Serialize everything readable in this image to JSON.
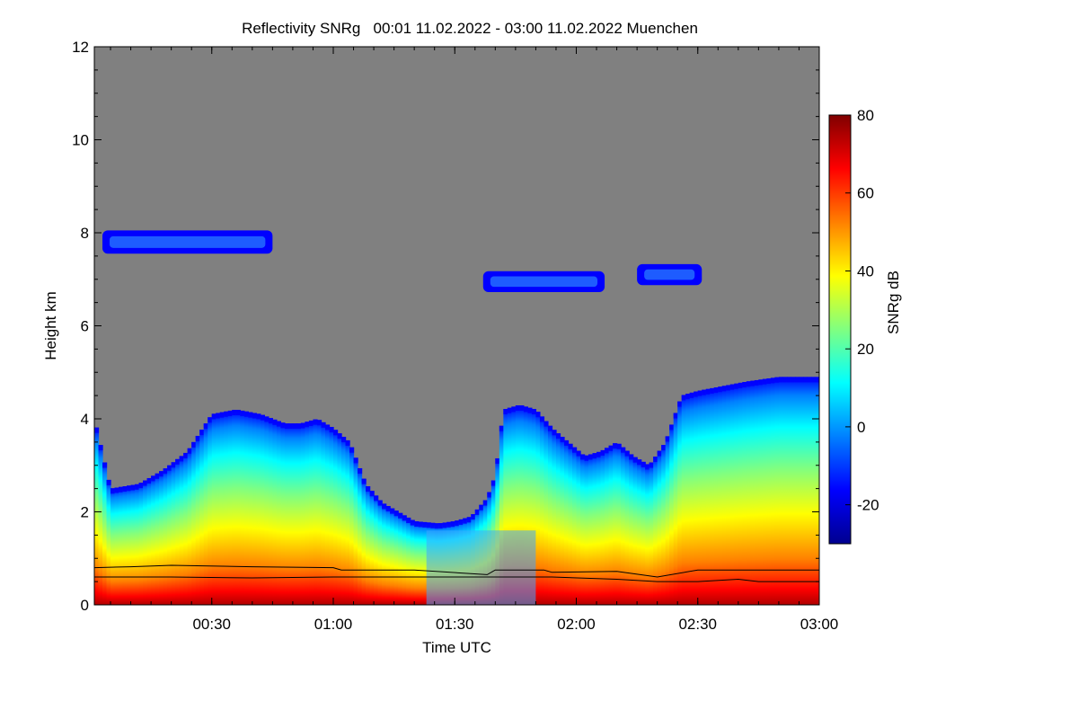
{
  "chart_data": {
    "type": "heatmap",
    "title": "Reflectivity SNRg   00:01 11.02.2022 - 03:00 11.02.2022 Muenchen",
    "xlabel": "Time UTC",
    "ylabel": "Height km",
    "colorbar_label": "SNRg dB",
    "xlim_minutes": [
      1,
      180
    ],
    "x_ticks": [
      {
        "minute": 30,
        "label": "00:30"
      },
      {
        "minute": 60,
        "label": "01:00"
      },
      {
        "minute": 90,
        "label": "01:30"
      },
      {
        "minute": 120,
        "label": "02:00"
      },
      {
        "minute": 150,
        "label": "02:30"
      },
      {
        "minute": 180,
        "label": "03:00"
      }
    ],
    "ylim": [
      0,
      12
    ],
    "y_ticks": [
      0,
      2,
      4,
      6,
      8,
      10,
      12
    ],
    "colorbar_range": [
      -30,
      80
    ],
    "colorbar_ticks": [
      -20,
      0,
      20,
      40,
      60,
      80
    ],
    "background_color": "#808080",
    "colormap": [
      "#00008f",
      "#0000ff",
      "#0080ff",
      "#00ffff",
      "#80ff80",
      "#ffff00",
      "#ff8000",
      "#ff0000",
      "#800000"
    ],
    "cloud_top_profile": {
      "minute": [
        1,
        5,
        12,
        18,
        24,
        30,
        36,
        42,
        48,
        52,
        56,
        60,
        64,
        68,
        72,
        76,
        80,
        86,
        90,
        94,
        98,
        100,
        102,
        106,
        110,
        114,
        118,
        122,
        126,
        130,
        134,
        138,
        142,
        146,
        150,
        156,
        162,
        170,
        180
      ],
      "height_km": [
        4.0,
        2.5,
        2.6,
        2.9,
        3.3,
        4.1,
        4.2,
        4.1,
        3.9,
        3.9,
        4.0,
        3.8,
        3.5,
        2.6,
        2.2,
        2.0,
        1.8,
        1.75,
        1.8,
        1.9,
        2.3,
        2.8,
        4.2,
        4.3,
        4.2,
        3.8,
        3.5,
        3.2,
        3.3,
        3.5,
        3.2,
        3.0,
        3.5,
        4.5,
        4.6,
        4.7,
        4.8,
        4.9,
        4.9
      ]
    },
    "upper_cloud_layers": [
      {
        "minute_start": 3,
        "minute_end": 45,
        "height_km": 7.8,
        "thickness_km": 0.5
      },
      {
        "minute_start": 97,
        "minute_end": 127,
        "height_km": 6.95,
        "thickness_km": 0.45
      },
      {
        "minute_start": 135,
        "minute_end": 151,
        "height_km": 7.1,
        "thickness_km": 0.45
      }
    ],
    "reduced_signal_window_minutes": [
      83,
      110
    ],
    "boundary_lines_km": {
      "minute": [
        1,
        10,
        20,
        40,
        60,
        62,
        80,
        98,
        100,
        112,
        114,
        130,
        140,
        150,
        160,
        165,
        180
      ],
      "upper": [
        0.8,
        0.82,
        0.85,
        0.82,
        0.8,
        0.75,
        0.75,
        0.65,
        0.75,
        0.75,
        0.7,
        0.72,
        0.6,
        0.75,
        0.75,
        0.75,
        0.75
      ],
      "lower": [
        0.6,
        0.6,
        0.6,
        0.58,
        0.6,
        0.6,
        0.6,
        0.6,
        0.6,
        0.6,
        0.6,
        0.55,
        0.5,
        0.5,
        0.55,
        0.5,
        0.5
      ]
    }
  }
}
